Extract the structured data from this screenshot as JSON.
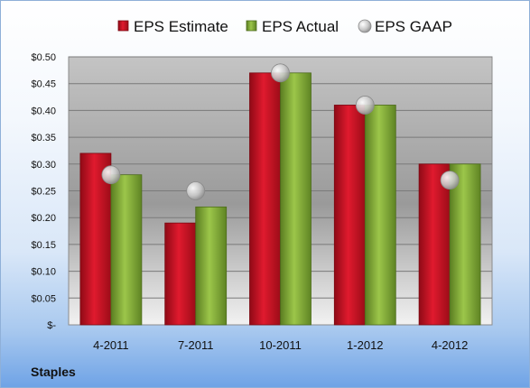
{
  "chart_data": {
    "type": "bar",
    "company": "Staples",
    "categories": [
      "4-2011",
      "7-2011",
      "10-2011",
      "1-2012",
      "4-2012"
    ],
    "series": [
      {
        "name": "EPS Estimate",
        "type": "bar",
        "color": "#c8102e",
        "values": [
          0.32,
          0.19,
          0.47,
          0.41,
          0.3
        ]
      },
      {
        "name": "EPS Actual",
        "type": "bar",
        "color": "#7fa636",
        "values": [
          0.28,
          0.22,
          0.47,
          0.41,
          0.3
        ]
      },
      {
        "name": "EPS GAAP",
        "type": "scatter",
        "color": "#b9b9b9",
        "values": [
          0.28,
          0.25,
          0.47,
          0.41,
          0.27
        ]
      }
    ],
    "ylim": [
      0,
      0.5
    ],
    "yticks": [
      0,
      0.05,
      0.1,
      0.15,
      0.2,
      0.25,
      0.3,
      0.35,
      0.4,
      0.45,
      0.5
    ],
    "ytick_labels": [
      "$-",
      "$0.05",
      "$0.10",
      "$0.15",
      "$0.20",
      "$0.25",
      "$0.30",
      "$0.35",
      "$0.40",
      "$0.45",
      "$0.50"
    ],
    "grid": true,
    "legend_position": "top"
  }
}
